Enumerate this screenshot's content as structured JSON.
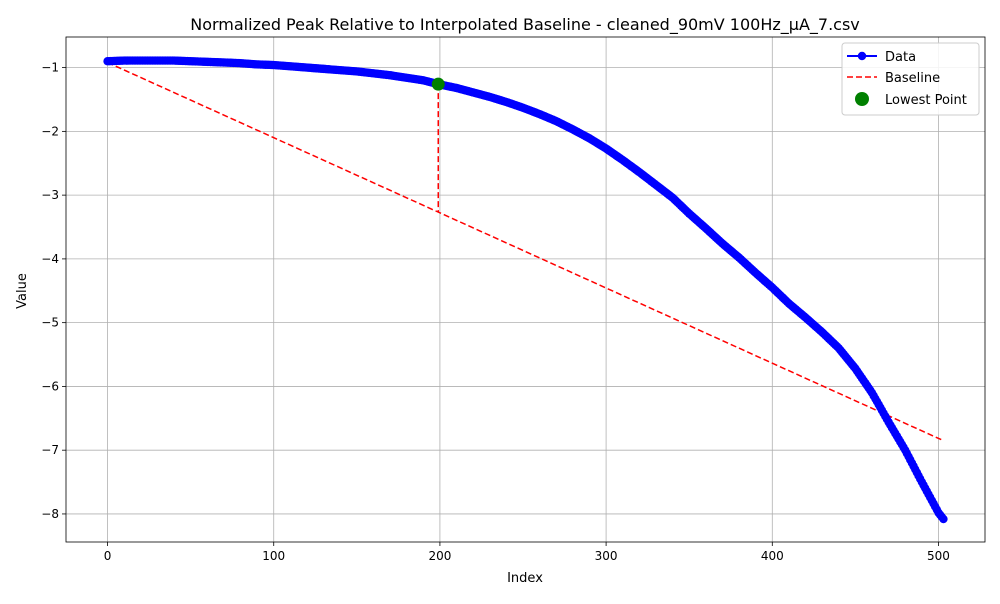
{
  "chart_data": {
    "type": "line",
    "title": "Normalized Peak Relative to Interpolated Baseline - cleaned_90mV 100Hz_µA_7.csv",
    "xlabel": "Index",
    "ylabel": "Value",
    "xlim": [
      -25,
      528
    ],
    "ylim": [
      -8.44,
      -0.52
    ],
    "xticks": [
      0,
      100,
      200,
      300,
      400,
      500
    ],
    "yticks": [
      -1,
      -2,
      -3,
      -4,
      -5,
      -6,
      -7,
      -8
    ],
    "xtick_labels": [
      "0",
      "100",
      "200",
      "300",
      "400",
      "500"
    ],
    "ytick_labels": [
      "−1",
      "−2",
      "−3",
      "−4",
      "−5",
      "−6",
      "−7",
      "−8"
    ],
    "grid": true,
    "legend_position": "upper right",
    "series": [
      {
        "name": "Data",
        "kind": "line-marker",
        "color": "#0000ff",
        "x_range": [
          0,
          503
        ],
        "x": [
          0,
          10,
          20,
          30,
          40,
          50,
          60,
          70,
          80,
          90,
          100,
          110,
          120,
          130,
          140,
          150,
          160,
          170,
          180,
          190,
          199,
          210,
          220,
          230,
          240,
          250,
          260,
          270,
          280,
          290,
          300,
          310,
          320,
          330,
          340,
          350,
          360,
          370,
          380,
          390,
          400,
          410,
          420,
          430,
          440,
          450,
          460,
          470,
          480,
          490,
          500,
          503
        ],
        "y": [
          -0.9,
          -0.89,
          -0.89,
          -0.89,
          -0.89,
          -0.9,
          -0.91,
          -0.92,
          -0.93,
          -0.95,
          -0.96,
          -0.98,
          -1.0,
          -1.02,
          -1.04,
          -1.06,
          -1.09,
          -1.12,
          -1.16,
          -1.2,
          -1.26,
          -1.32,
          -1.39,
          -1.46,
          -1.54,
          -1.63,
          -1.73,
          -1.84,
          -1.97,
          -2.11,
          -2.27,
          -2.45,
          -2.64,
          -2.84,
          -3.04,
          -3.29,
          -3.52,
          -3.76,
          -3.98,
          -4.22,
          -4.45,
          -4.7,
          -4.92,
          -5.15,
          -5.4,
          -5.72,
          -6.1,
          -6.56,
          -7.0,
          -7.5,
          -7.98,
          -8.08
        ]
      },
      {
        "name": "Baseline",
        "kind": "dashed",
        "color": "#ff0000",
        "x": [
          0,
          503
        ],
        "y": [
          -0.92,
          -6.85
        ]
      },
      {
        "name": "Lowest Point",
        "kind": "scatter",
        "color": "#008000",
        "x": [
          199
        ],
        "y": [
          -1.26
        ]
      }
    ],
    "annotations": [
      {
        "kind": "vertical-dashed",
        "color": "#ff0000",
        "x": 199,
        "y": [
          -1.26,
          -3.27
        ]
      }
    ]
  }
}
